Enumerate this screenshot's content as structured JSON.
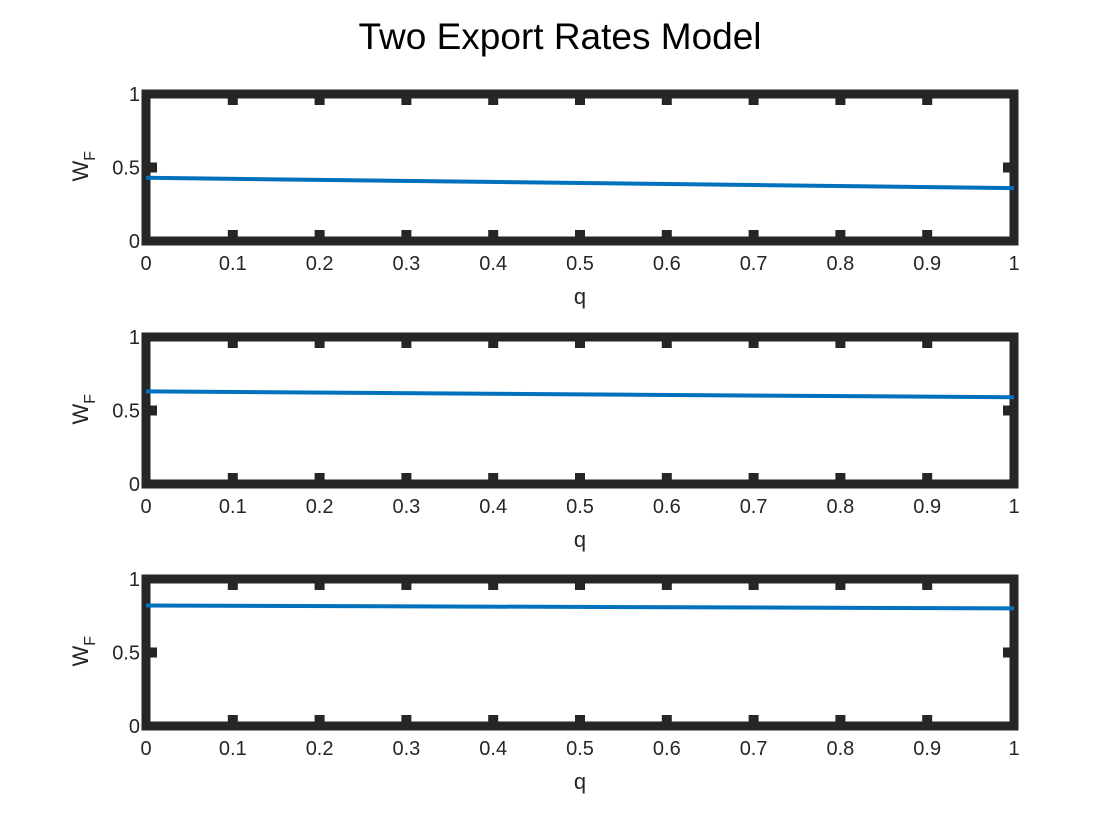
{
  "title": "Two Export Rates Model",
  "colors": {
    "line": "#0072BD",
    "axes": "#262626",
    "text": "#262626",
    "background": "#ffffff"
  },
  "chart_data": [
    {
      "type": "line",
      "title": "",
      "xlabel": "q",
      "ylabel": "W_F",
      "ylabel_main": "W",
      "ylabel_sub": "F",
      "xlim": [
        0,
        1
      ],
      "ylim": [
        0,
        1
      ],
      "xticks": [
        0,
        0.1,
        0.2,
        0.3,
        0.4,
        0.5,
        0.6,
        0.7,
        0.8,
        0.9,
        1
      ],
      "xtick_labels": [
        "0",
        "0.1",
        "0.2",
        "0.3",
        "0.4",
        "0.5",
        "0.6",
        "0.7",
        "0.8",
        "0.9",
        "1"
      ],
      "yticks": [
        0,
        0.5,
        1
      ],
      "ytick_labels": [
        "0",
        "0.5",
        "1"
      ],
      "grid": false,
      "series": [
        {
          "x": [
            0,
            1
          ],
          "y": [
            0.43,
            0.36
          ]
        }
      ]
    },
    {
      "type": "line",
      "title": "",
      "xlabel": "q",
      "ylabel": "W_F",
      "ylabel_main": "W",
      "ylabel_sub": "F",
      "xlim": [
        0,
        1
      ],
      "ylim": [
        0,
        1
      ],
      "xticks": [
        0,
        0.1,
        0.2,
        0.3,
        0.4,
        0.5,
        0.6,
        0.7,
        0.8,
        0.9,
        1
      ],
      "xtick_labels": [
        "0",
        "0.1",
        "0.2",
        "0.3",
        "0.4",
        "0.5",
        "0.6",
        "0.7",
        "0.8",
        "0.9",
        "1"
      ],
      "yticks": [
        0,
        0.5,
        1
      ],
      "ytick_labels": [
        "0",
        "0.5",
        "1"
      ],
      "grid": false,
      "series": [
        {
          "x": [
            0,
            1
          ],
          "y": [
            0.63,
            0.59
          ]
        }
      ]
    },
    {
      "type": "line",
      "title": "",
      "xlabel": "q",
      "ylabel": "W_F",
      "ylabel_main": "W",
      "ylabel_sub": "F",
      "xlim": [
        0,
        1
      ],
      "ylim": [
        0,
        1
      ],
      "xticks": [
        0,
        0.1,
        0.2,
        0.3,
        0.4,
        0.5,
        0.6,
        0.7,
        0.8,
        0.9,
        1
      ],
      "xtick_labels": [
        "0",
        "0.1",
        "0.2",
        "0.3",
        "0.4",
        "0.5",
        "0.6",
        "0.7",
        "0.8",
        "0.9",
        "1"
      ],
      "yticks": [
        0,
        0.5,
        1
      ],
      "ytick_labels": [
        "0",
        "0.5",
        "1"
      ],
      "grid": false,
      "series": [
        {
          "x": [
            0,
            1
          ],
          "y": [
            0.82,
            0.8
          ]
        }
      ]
    }
  ]
}
